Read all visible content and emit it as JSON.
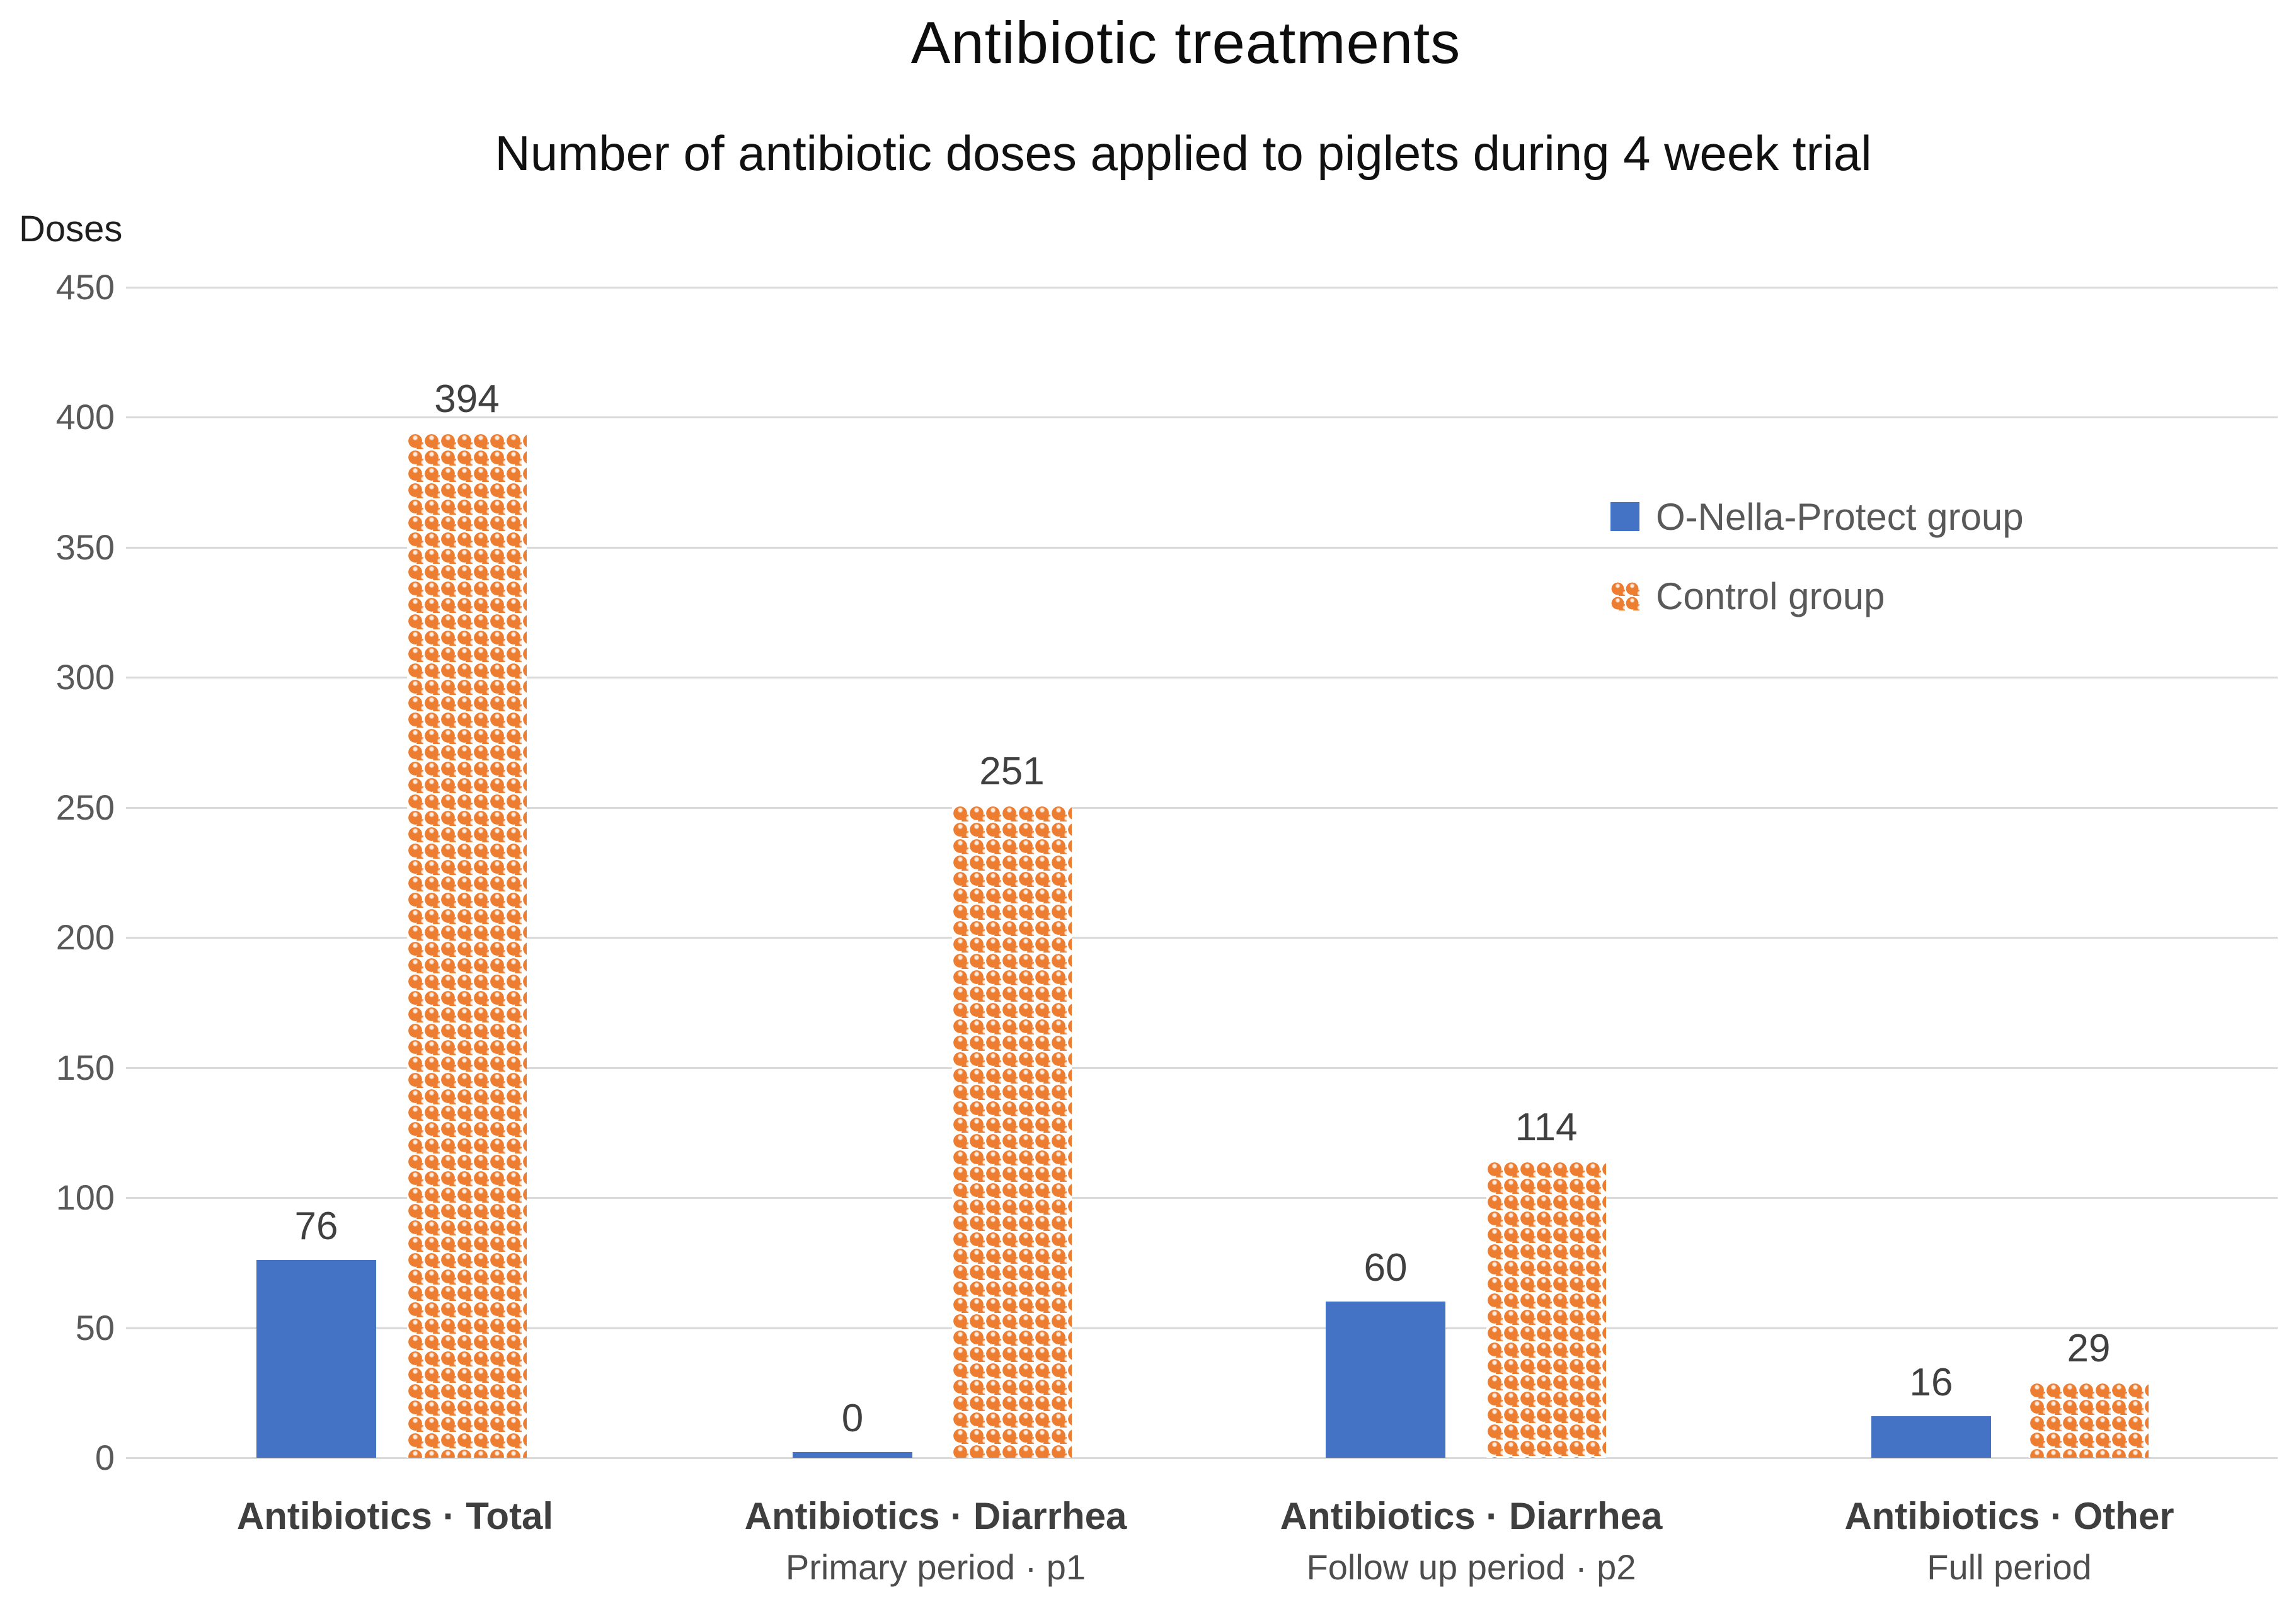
{
  "header": {
    "title": "Antibiotic treatments",
    "subtitle": "Number of antibiotic doses applied to piglets during 4 week trial"
  },
  "axes": {
    "y_title": "Doses"
  },
  "legend": {
    "items": [
      {
        "label": "O-Nella-Protect group",
        "swatch": "solid-blue-square",
        "color": "#4472C4"
      },
      {
        "label": "Control group",
        "swatch": "orange-sphere-pattern-square",
        "color": "#ED7D31"
      }
    ]
  },
  "chart_data": {
    "type": "bar",
    "title": "Antibiotic treatments",
    "subtitle": "Number of antibiotic doses applied to piglets during 4 week trial",
    "ylabel": "Doses",
    "xlabel": "",
    "ylim": [
      0,
      450
    ],
    "ytick_interval": 50,
    "yticks": [
      "450",
      "400",
      "350",
      "300",
      "250",
      "200",
      "150",
      "100",
      "50",
      "0"
    ],
    "grid": true,
    "legend_position": "inside-upper-right",
    "categories": [
      {
        "label": "Antibiotics · Total",
        "sublabel": ""
      },
      {
        "label": "Antibiotics · Diarrhea",
        "sublabel": "Primary period · p1"
      },
      {
        "label": "Antibiotics · Diarrhea",
        "sublabel": "Follow up period · p2"
      },
      {
        "label": "Antibiotics · Other",
        "sublabel": "Full period"
      }
    ],
    "series": [
      {
        "name": "O-Nella-Protect group",
        "color": "#4472C4",
        "fill": "solid",
        "values": [
          76,
          0,
          60,
          16
        ]
      },
      {
        "name": "Control group",
        "color": "#ED7D31",
        "fill": "sphere-pattern",
        "values": [
          394,
          251,
          114,
          29
        ]
      }
    ],
    "colors": {
      "gridline": "#D9D9D9",
      "tick_text": "#595959",
      "data_label_text": "#404040",
      "category_text": "#3F3F3F"
    }
  }
}
